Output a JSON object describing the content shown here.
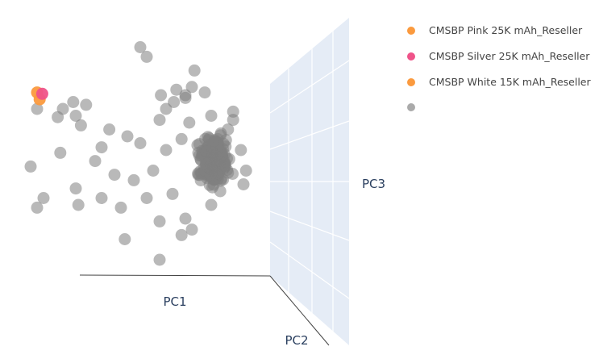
{
  "colors": {
    "background": "#ffffff",
    "wall": "#e5ecf6",
    "grid": "#ffffff",
    "axis_line": "#444444",
    "gray_points": "#808080",
    "orange": "#fb9a3e",
    "pink": "#ef5389"
  },
  "chart_data": {
    "type": "scatter",
    "projection": "3d",
    "axes": {
      "x": {
        "label": "PC1"
      },
      "y": {
        "label": "PC2"
      },
      "z": {
        "label": "PC3"
      }
    },
    "grid": true,
    "legend_position": "top-right",
    "series": [
      {
        "name": "CMSBP Pink 25K mAh_Reseller",
        "color": "#fb9a3e",
        "points": [
          [
            -0.9,
            0.62
          ]
        ]
      },
      {
        "name": "CMSBP Silver 25K mAh_Reseller",
        "color": "#ef5389",
        "points": [
          [
            -0.86,
            0.61
          ]
        ]
      },
      {
        "name": "CMSBP White 15K mAh_Reseller",
        "color": "#fb9a3e",
        "points": [
          [
            -0.88,
            0.57
          ]
        ]
      },
      {
        "name": "",
        "color": "#808080",
        "points": [
          [
            -0.1,
            0.95
          ],
          [
            -0.05,
            0.88
          ],
          [
            0.32,
            0.78
          ],
          [
            0.3,
            0.66
          ],
          [
            -0.9,
            0.5
          ],
          [
            0.18,
            0.64
          ],
          [
            0.25,
            0.6
          ],
          [
            0.4,
            0.62
          ],
          [
            0.06,
            0.6
          ],
          [
            0.16,
            0.55
          ],
          [
            -0.52,
            0.53
          ],
          [
            -0.7,
            0.5
          ],
          [
            -0.62,
            0.55
          ],
          [
            -0.6,
            0.45
          ],
          [
            -0.74,
            0.44
          ],
          [
            -0.56,
            0.38
          ],
          [
            -0.34,
            0.35
          ],
          [
            0.1,
            0.5
          ],
          [
            0.25,
            0.58
          ],
          [
            0.05,
            0.42
          ],
          [
            -0.2,
            0.3
          ],
          [
            -0.1,
            0.25
          ],
          [
            -0.4,
            0.22
          ],
          [
            -0.72,
            0.18
          ],
          [
            -0.45,
            0.12
          ],
          [
            -0.3,
            0.02
          ],
          [
            -0.15,
            -0.02
          ],
          [
            0.35,
            0.02
          ],
          [
            -0.95,
            0.08
          ],
          [
            -0.4,
            -0.15
          ],
          [
            -0.6,
            -0.08
          ],
          [
            -0.85,
            -0.15
          ],
          [
            -0.9,
            -0.22
          ],
          [
            -0.58,
            -0.2
          ],
          [
            -0.25,
            -0.22
          ],
          [
            -0.05,
            -0.15
          ],
          [
            0.05,
            -0.32
          ],
          [
            0.25,
            -0.3
          ],
          [
            0.3,
            -0.38
          ],
          [
            -0.22,
            -0.45
          ],
          [
            0.05,
            -0.6
          ],
          [
            0.22,
            -0.42
          ],
          [
            0.52,
            -0.1
          ],
          [
            0.55,
            0.12
          ],
          [
            0.35,
            0.18
          ],
          [
            0.58,
            0.35
          ],
          [
            0.62,
            0.48
          ],
          [
            0.28,
            0.4
          ],
          [
            0.1,
            0.2
          ],
          [
            0.0,
            0.05
          ],
          [
            0.45,
            -0.2
          ],
          [
            0.15,
            -0.12
          ],
          [
            0.68,
            0.2
          ],
          [
            0.72,
            0.05
          ],
          [
            0.7,
            -0.05
          ],
          [
            0.45,
            0.45
          ],
          [
            0.5,
            0.28
          ],
          [
            0.62,
            0.42
          ],
          [
            0.4,
            0.05
          ],
          [
            0.22,
            0.28
          ]
        ],
        "cluster": {
          "center": [
            0.48,
            0.12
          ],
          "spread": [
            0.17,
            0.24
          ],
          "count": 150
        }
      }
    ]
  },
  "legend": {
    "items": [
      {
        "label": "CMSBP Pink 25K mAh_Reseller",
        "color": "#fb9a3e"
      },
      {
        "label": "CMSBP Silver 25K mAh_Reseller",
        "color": "#ef5389"
      },
      {
        "label": "CMSBP White 15K mAh_Reseller",
        "color": "#fb9a3e"
      },
      {
        "label": "",
        "color": "#aaaaaa"
      }
    ]
  }
}
